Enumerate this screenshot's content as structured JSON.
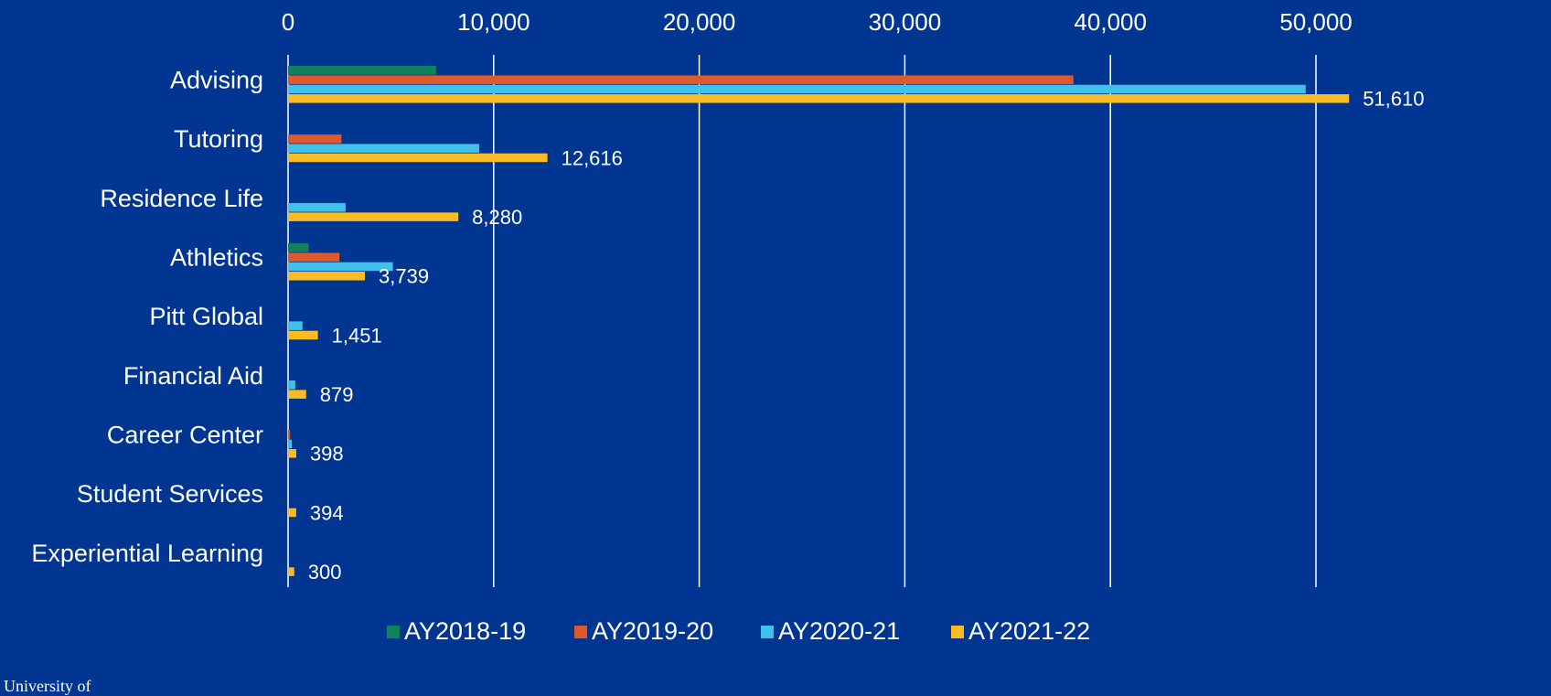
{
  "chart_data": {
    "type": "hbar",
    "categories": [
      "Advising",
      "Tutoring",
      "Residence Life",
      "Athletics",
      "Pitt Global",
      "Financial Aid",
      "Career Center",
      "Student Services",
      "Experiential Learning"
    ],
    "series": [
      {
        "name": "AY2018-19",
        "color": "#10835e",
        "values": [
          7200,
          null,
          null,
          1000,
          null,
          null,
          null,
          null,
          null
        ]
      },
      {
        "name": "AY2019-20",
        "color": "#e0592a",
        "values": [
          38200,
          2600,
          null,
          2500,
          null,
          null,
          100,
          null,
          null
        ]
      },
      {
        "name": "AY2020-21",
        "color": "#41c0ea",
        "values": [
          49500,
          9300,
          2800,
          5100,
          700,
          350,
          180,
          null,
          null
        ]
      },
      {
        "name": "AY2021-22",
        "color": "#fbbb22",
        "values": [
          51610,
          12616,
          8280,
          3739,
          1451,
          879,
          398,
          394,
          300
        ],
        "value_labels": [
          "51,610",
          "12,616",
          "8,280",
          "3,739",
          "1,451",
          "879",
          "398",
          "394",
          "300"
        ]
      }
    ],
    "xlim": [
      0,
      50000
    ],
    "xticks": [
      0,
      {
        "value": 10000,
        "label": "10,000"
      },
      {
        "value": 20000,
        "label": "20,000"
      },
      {
        "value": 30000,
        "label": "30,000"
      },
      {
        "value": 40000,
        "label": "40,000"
      },
      {
        "value": 50000,
        "label": "50,000"
      }
    ],
    "grid": true,
    "legend": "bottom",
    "logo_text": "University of"
  }
}
